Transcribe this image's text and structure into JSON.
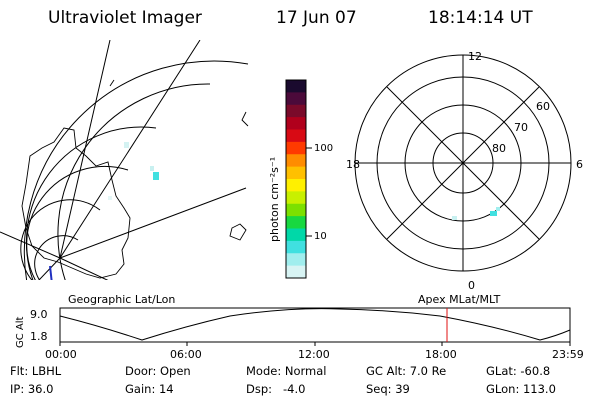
{
  "header": {
    "title": "Ultraviolet Imager",
    "date": "17 Jun 07",
    "time": "18:14:14 UT"
  },
  "colorbar": {
    "unit_label": "photon cm⁻²s⁻¹",
    "tick_labels": [
      "100",
      "10"
    ],
    "colors": [
      "#1a0a2e",
      "#4b0a3a",
      "#7a0a2a",
      "#b0001c",
      "#d80a14",
      "#ff3a00",
      "#ff8c00",
      "#ffc000",
      "#fff000",
      "#c8f000",
      "#7ce000",
      "#18d840",
      "#00d8a8",
      "#40e0e0",
      "#a0eeee",
      "#d8f4f4"
    ]
  },
  "left_panel": {
    "caption": "Geographic Lat/Lon"
  },
  "right_panel": {
    "caption": "Apex  MLat/MLT",
    "mlt_labels": {
      "top": "12",
      "bottom": "0",
      "left": "18",
      "right": "6"
    },
    "mlat_labels": [
      "60",
      "70",
      "80"
    ]
  },
  "altitude_strip": {
    "axis_label": "GC Alt",
    "y_ticks": [
      "9.0",
      "1.8"
    ],
    "x_ticks": [
      "00:00",
      "06:00",
      "12:00",
      "18:00",
      "23:59"
    ],
    "marker_color": "#e01010"
  },
  "footer": {
    "rows": [
      [
        "Flt: LBHL",
        "Door: Open",
        "Mode: Normal",
        "GC Alt: 7.0 Re",
        "GLat: -60.8"
      ],
      [
        "IP: 36.0",
        "Gain: 14",
        "Dsp:   -4.0",
        "Seq: 39",
        "GLon: 113.0"
      ]
    ]
  }
}
